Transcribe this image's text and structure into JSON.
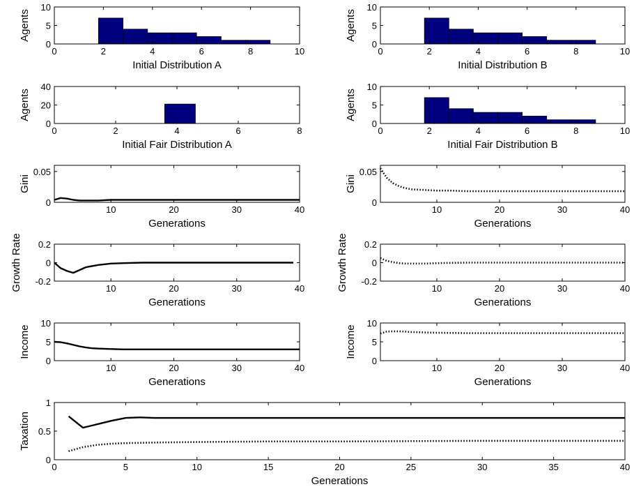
{
  "chart_data": [
    {
      "id": "dist_a",
      "type": "bar",
      "xlabel": "Initial Distribution A",
      "ylabel": "Agents",
      "xlim": [
        0,
        10
      ],
      "ylim": [
        0,
        10
      ],
      "xticks": [
        0,
        2,
        4,
        6,
        8,
        10
      ],
      "yticks": [
        0,
        5,
        10
      ],
      "bar_color": "#00007f",
      "bars": [
        {
          "x0": 1.8,
          "x1": 2.8,
          "value": 7
        },
        {
          "x0": 2.8,
          "x1": 3.8,
          "value": 4
        },
        {
          "x0": 3.8,
          "x1": 4.8,
          "value": 3
        },
        {
          "x0": 4.8,
          "x1": 5.8,
          "value": 3
        },
        {
          "x0": 5.8,
          "x1": 6.8,
          "value": 2
        },
        {
          "x0": 6.8,
          "x1": 7.8,
          "value": 1
        },
        {
          "x0": 7.8,
          "x1": 8.8,
          "value": 1
        }
      ]
    },
    {
      "id": "dist_b",
      "type": "bar",
      "xlabel": "Initial Distribution B",
      "ylabel": "Agents",
      "xlim": [
        0,
        10
      ],
      "ylim": [
        0,
        10
      ],
      "xticks": [
        0,
        2,
        4,
        6,
        8,
        10
      ],
      "yticks": [
        0,
        5,
        10
      ],
      "bar_color": "#00007f",
      "bars": [
        {
          "x0": 1.8,
          "x1": 2.8,
          "value": 7
        },
        {
          "x0": 2.8,
          "x1": 3.8,
          "value": 4
        },
        {
          "x0": 3.8,
          "x1": 4.8,
          "value": 3
        },
        {
          "x0": 4.8,
          "x1": 5.8,
          "value": 3
        },
        {
          "x0": 5.8,
          "x1": 6.8,
          "value": 2
        },
        {
          "x0": 6.8,
          "x1": 7.8,
          "value": 1
        },
        {
          "x0": 7.8,
          "x1": 8.8,
          "value": 1
        }
      ]
    },
    {
      "id": "fair_a",
      "type": "bar",
      "xlabel": "Initial Fair Distribution A",
      "ylabel": "Agents",
      "xlim": [
        0,
        8
      ],
      "ylim": [
        0,
        40
      ],
      "xticks": [
        0,
        2,
        4,
        6,
        8
      ],
      "yticks": [
        0,
        20,
        40
      ],
      "bar_color": "#00007f",
      "bars": [
        {
          "x0": 3.6,
          "x1": 4.6,
          "value": 21
        }
      ]
    },
    {
      "id": "fair_b",
      "type": "bar",
      "xlabel": "Initial Fair Distribution B",
      "ylabel": "Agents",
      "xlim": [
        0,
        10
      ],
      "ylim": [
        0,
        10
      ],
      "xticks": [
        0,
        2,
        4,
        6,
        8,
        10
      ],
      "yticks": [
        0,
        5,
        10
      ],
      "bar_color": "#00007f",
      "bars": [
        {
          "x0": 1.8,
          "x1": 2.8,
          "value": 7
        },
        {
          "x0": 2.8,
          "x1": 3.8,
          "value": 4
        },
        {
          "x0": 3.8,
          "x1": 4.8,
          "value": 3
        },
        {
          "x0": 4.8,
          "x1": 5.8,
          "value": 3
        },
        {
          "x0": 5.8,
          "x1": 6.8,
          "value": 2
        },
        {
          "x0": 6.8,
          "x1": 7.8,
          "value": 1
        },
        {
          "x0": 7.8,
          "x1": 8.8,
          "value": 1
        }
      ]
    },
    {
      "id": "gini_a",
      "type": "line",
      "xlabel": "Generations",
      "ylabel": "Gini",
      "xlim": [
        1,
        40
      ],
      "ylim": [
        0,
        0.06
      ],
      "xticks": [
        10,
        20,
        30,
        40
      ],
      "yticks": [
        0,
        0.05
      ],
      "ytick_labels": [
        "0",
        "0.05"
      ],
      "series": [
        {
          "style": "solid",
          "x": [
            1,
            2,
            3,
            4,
            5,
            6,
            8,
            10,
            15,
            20,
            30,
            40
          ],
          "y": [
            0.004,
            0.007,
            0.006,
            0.004,
            0.003,
            0.003,
            0.003,
            0.004,
            0.004,
            0.004,
            0.004,
            0.004
          ]
        }
      ]
    },
    {
      "id": "gini_b",
      "type": "line",
      "xlabel": "Generations",
      "ylabel": "Gini",
      "xlim": [
        1,
        40
      ],
      "ylim": [
        0,
        0.06
      ],
      "xticks": [
        10,
        20,
        30,
        40
      ],
      "yticks": [
        0,
        0.05
      ],
      "ytick_labels": [
        "0",
        "0.05"
      ],
      "series": [
        {
          "style": "dotted",
          "x": [
            1,
            2,
            3,
            4,
            5,
            6,
            8,
            10,
            12,
            15,
            20,
            25,
            30,
            40
          ],
          "y": [
            0.055,
            0.04,
            0.031,
            0.026,
            0.023,
            0.021,
            0.02,
            0.019,
            0.019,
            0.018,
            0.018,
            0.018,
            0.018,
            0.018
          ]
        }
      ]
    },
    {
      "id": "growth_a",
      "type": "line",
      "xlabel": "Generations",
      "ylabel": "Growth Rate",
      "xlim": [
        1,
        40
      ],
      "ylim": [
        -0.2,
        0.2
      ],
      "xticks": [
        10,
        20,
        30,
        40
      ],
      "yticks": [
        -0.2,
        0,
        0.2
      ],
      "ytick_labels": [
        "-0.2",
        "0",
        "0.2"
      ],
      "series": [
        {
          "style": "solid",
          "x": [
            1,
            2,
            3,
            4,
            5,
            6,
            8,
            10,
            12,
            15,
            20,
            30,
            39
          ],
          "y": [
            0,
            -0.06,
            -0.09,
            -0.11,
            -0.08,
            -0.05,
            -0.025,
            -0.01,
            -0.005,
            0,
            0,
            0,
            0
          ]
        }
      ]
    },
    {
      "id": "growth_b",
      "type": "line",
      "xlabel": "Generations",
      "ylabel": "Growth Rate",
      "xlim": [
        1,
        40
      ],
      "ylim": [
        -0.2,
        0.2
      ],
      "xticks": [
        10,
        20,
        30,
        40
      ],
      "yticks": [
        -0.2,
        0,
        0.2
      ],
      "ytick_labels": [
        "-0.2",
        "0",
        "0.2"
      ],
      "series": [
        {
          "style": "dotted",
          "x": [
            1,
            2,
            3,
            4,
            5,
            6,
            8,
            10,
            15,
            20,
            30,
            40
          ],
          "y": [
            0.05,
            0.02,
            0.005,
            -0.005,
            -0.01,
            -0.01,
            -0.01,
            -0.005,
            0,
            0,
            0,
            0
          ]
        }
      ]
    },
    {
      "id": "income_a",
      "type": "line",
      "xlabel": "Generations",
      "ylabel": "Income",
      "xlim": [
        1,
        40
      ],
      "ylim": [
        0,
        10
      ],
      "xticks": [
        10,
        20,
        30,
        40
      ],
      "yticks": [
        0,
        5,
        10
      ],
      "series": [
        {
          "style": "solid",
          "x": [
            1,
            2,
            3,
            4,
            5,
            6,
            7,
            8,
            10,
            12,
            15,
            20,
            30,
            40
          ],
          "y": [
            5,
            4.9,
            4.6,
            4.2,
            3.8,
            3.5,
            3.3,
            3.2,
            3.1,
            3.0,
            3.0,
            3.0,
            3.0,
            3.0
          ]
        }
      ]
    },
    {
      "id": "income_b",
      "type": "line",
      "xlabel": "Generations",
      "ylabel": "Income",
      "xlim": [
        1,
        40
      ],
      "ylim": [
        0,
        10
      ],
      "xticks": [
        10,
        20,
        30,
        40
      ],
      "yticks": [
        0,
        5,
        10
      ],
      "series": [
        {
          "style": "dotted",
          "x": [
            1,
            2,
            3,
            4,
            5,
            6,
            8,
            10,
            15,
            20,
            30,
            40
          ],
          "y": [
            7.2,
            7.7,
            7.8,
            7.8,
            7.7,
            7.6,
            7.5,
            7.4,
            7.3,
            7.3,
            7.3,
            7.3
          ]
        }
      ]
    },
    {
      "id": "taxation",
      "type": "line",
      "xlabel": "Generations",
      "ylabel": "Taxation",
      "xlim": [
        0,
        40
      ],
      "ylim": [
        0,
        1
      ],
      "xticks": [
        0,
        5,
        10,
        15,
        20,
        25,
        30,
        35,
        40
      ],
      "yticks": [
        0,
        0.5,
        1
      ],
      "ytick_labels": [
        "0",
        "0.5",
        "1"
      ],
      "series": [
        {
          "style": "solid",
          "x": [
            1,
            2,
            3,
            4,
            5,
            6,
            7,
            10,
            20,
            30,
            40
          ],
          "y": [
            0.76,
            0.56,
            0.62,
            0.68,
            0.73,
            0.74,
            0.73,
            0.73,
            0.73,
            0.73,
            0.73
          ]
        },
        {
          "style": "dotted",
          "x": [
            1,
            2,
            3,
            4,
            5,
            7,
            10,
            15,
            20,
            30,
            40
          ],
          "y": [
            0.15,
            0.22,
            0.26,
            0.28,
            0.29,
            0.3,
            0.31,
            0.32,
            0.32,
            0.33,
            0.33
          ]
        }
      ]
    }
  ]
}
